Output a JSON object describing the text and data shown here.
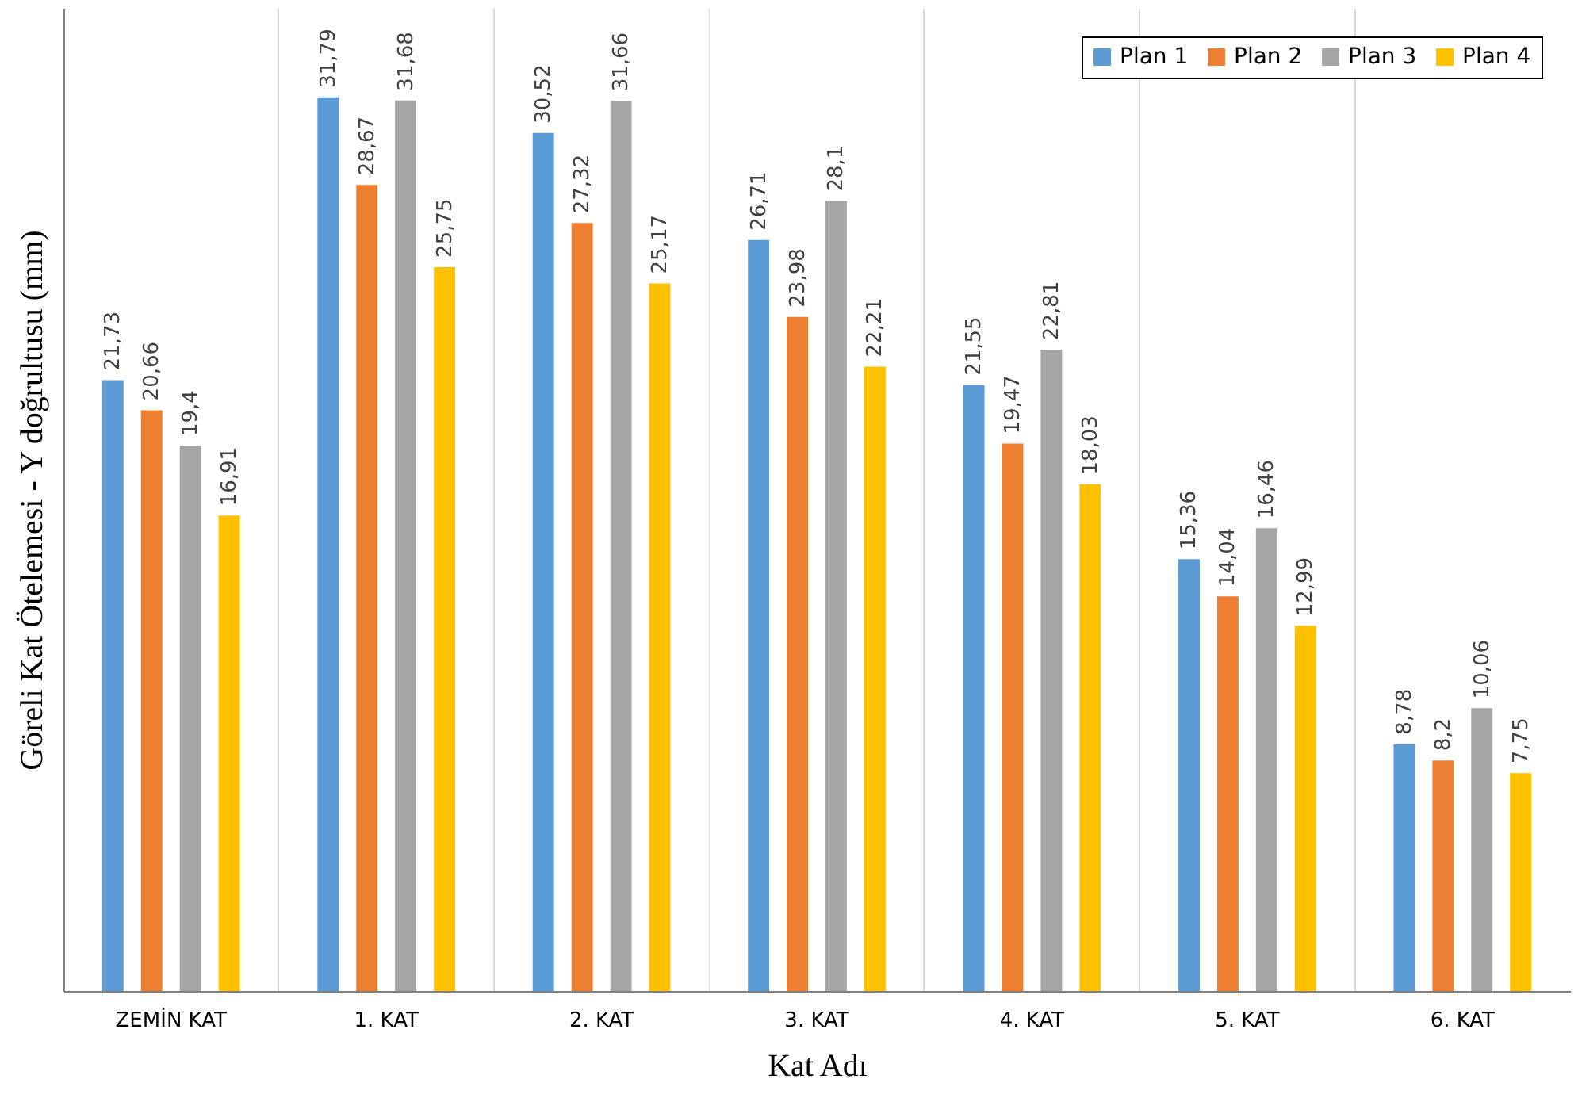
{
  "chart_data": {
    "type": "bar",
    "xlabel": "Kat Adı",
    "ylabel": "Göreli Kat Ötelemesi  - Y doğrultusu (mm)",
    "categories": [
      "ZEMİN KAT",
      "1. KAT",
      "2. KAT",
      "3. KAT",
      "4. KAT",
      "5. KAT",
      "6. KAT"
    ],
    "series": [
      {
        "name": "Plan 1",
        "color": "#5b9bd5",
        "values": [
          21.73,
          31.79,
          30.52,
          26.71,
          21.55,
          15.36,
          8.78
        ],
        "value_labels": [
          "21,73",
          "31,79",
          "30,52",
          "26,71",
          "21,55",
          "15,36",
          "8,78"
        ]
      },
      {
        "name": "Plan 2",
        "color": "#ed7d31",
        "values": [
          20.66,
          28.67,
          27.32,
          23.98,
          19.47,
          14.04,
          8.2
        ],
        "value_labels": [
          "20,66",
          "28,67",
          "27,32",
          "23,98",
          "19,47",
          "14,04",
          "8,2"
        ]
      },
      {
        "name": "Plan 3",
        "color": "#a5a5a5",
        "values": [
          19.4,
          31.68,
          31.66,
          28.1,
          22.81,
          16.46,
          10.06
        ],
        "value_labels": [
          "19,4",
          "31,68",
          "31,66",
          "28,1",
          "22,81",
          "16,46",
          "10,06"
        ]
      },
      {
        "name": "Plan 4",
        "color": "#ffc000",
        "values": [
          16.91,
          25.75,
          25.17,
          22.21,
          18.03,
          12.99,
          7.75
        ],
        "value_labels": [
          "16,91",
          "25,75",
          "25,17",
          "22,21",
          "18,03",
          "12,99",
          "7,75"
        ]
      }
    ],
    "grid": "x",
    "legend": "top right"
  }
}
